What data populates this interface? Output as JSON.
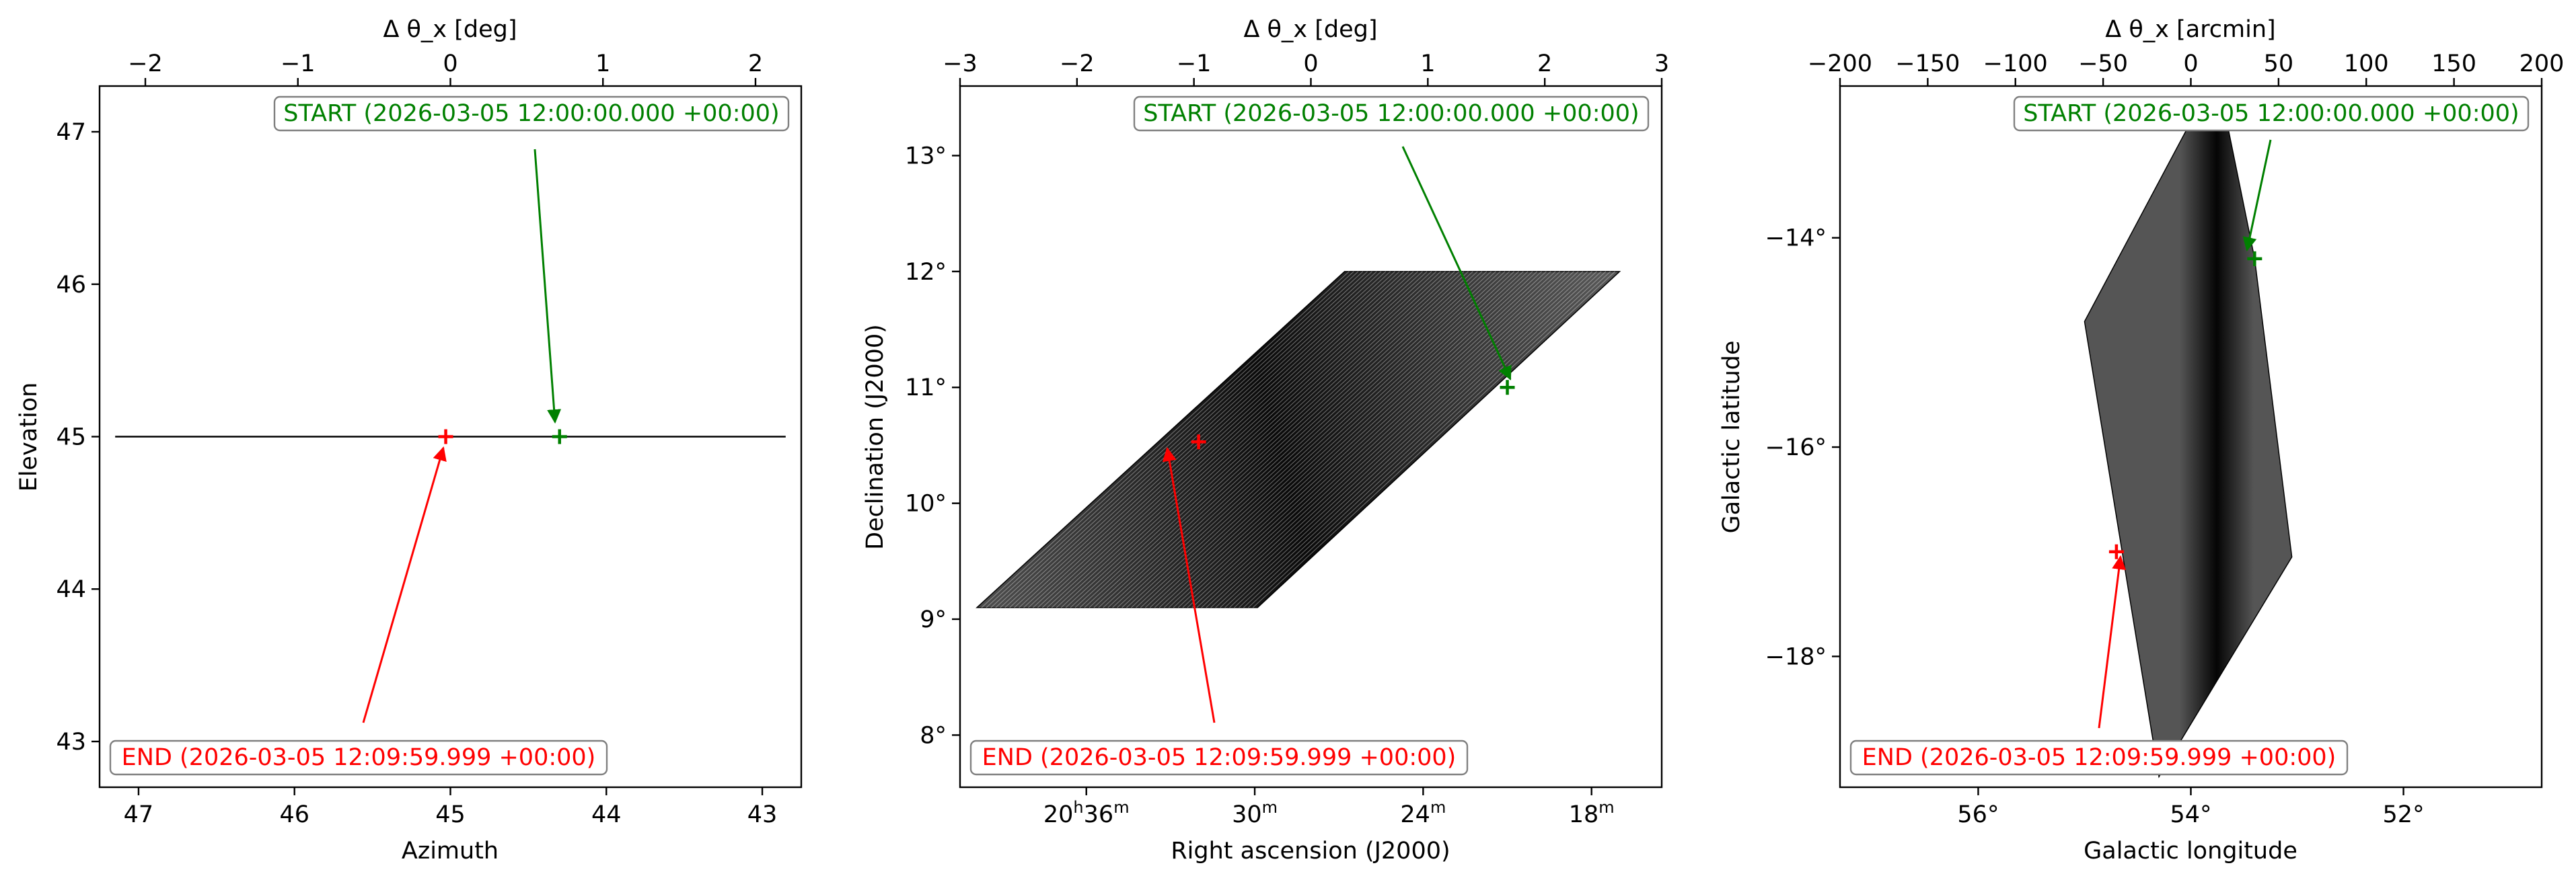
{
  "chart_data": [
    {
      "type": "line",
      "panel": "altaz",
      "xlabel": "Azimuth",
      "ylabel": "Elevation",
      "top_xlabel": "Δ θ_x [deg]",
      "xlim": [
        47.25,
        42.75
      ],
      "ylim": [
        42.7,
        47.3
      ],
      "x_ticks": [
        {
          "v": 47,
          "label": "47"
        },
        {
          "v": 46,
          "label": "46"
        },
        {
          "v": 45,
          "label": "45"
        },
        {
          "v": 44,
          "label": "44"
        },
        {
          "v": 43,
          "label": "43"
        }
      ],
      "y_ticks": [
        {
          "v": 43,
          "label": "43"
        },
        {
          "v": 44,
          "label": "44"
        },
        {
          "v": 45,
          "label": "45"
        },
        {
          "v": 46,
          "label": "46"
        },
        {
          "v": 47,
          "label": "47"
        }
      ],
      "top_xlim": [
        -2.3,
        2.3
      ],
      "top_ticks": [
        {
          "v": -2,
          "label": "−2"
        },
        {
          "v": -1,
          "label": "−1"
        },
        {
          "v": 0,
          "label": "0"
        },
        {
          "v": 1,
          "label": "1"
        },
        {
          "v": 2,
          "label": "2"
        }
      ],
      "scan_line": {
        "x": [
          47.15,
          42.85
        ],
        "y": 45.0
      },
      "start_marker": {
        "x": 44.3,
        "y": 45.0
      },
      "end_marker": {
        "x": 45.03,
        "y": 45.0
      },
      "start_label": "START (2026-03-05 12:00:00.000 +00:00)",
      "end_label": "END (2026-03-05 12:09:59.999 +00:00)",
      "colors": {
        "start": "#008000",
        "end": "#ff0000",
        "scan": "#000000"
      }
    },
    {
      "type": "area",
      "panel": "radec",
      "xlabel": "Right ascension (J2000)",
      "ylabel": "Declination (J2000)",
      "top_xlabel": "Δ θ_x [deg]",
      "xlim_min": [
        40.5,
        15.5
      ],
      "ylim": [
        7.55,
        13.6
      ],
      "x_ticks": [
        {
          "v": 36,
          "h": "20",
          "m": "36"
        },
        {
          "v": 30,
          "m": "30"
        },
        {
          "v": 24,
          "m": "24"
        },
        {
          "v": 18,
          "m": "18"
        }
      ],
      "y_ticks": [
        {
          "v": 8,
          "label": "8°"
        },
        {
          "v": 9,
          "label": "9°"
        },
        {
          "v": 10,
          "label": "10°"
        },
        {
          "v": 11,
          "label": "11°"
        },
        {
          "v": 12,
          "label": "12°"
        },
        {
          "v": 13,
          "label": "13°"
        }
      ],
      "top_xlim": [
        -3,
        3
      ],
      "top_ticks": [
        {
          "v": -3,
          "label": "−3"
        },
        {
          "v": -2,
          "label": "−2"
        },
        {
          "v": -1,
          "label": "−1"
        },
        {
          "v": 0,
          "label": "0"
        },
        {
          "v": 1,
          "label": "1"
        },
        {
          "v": 2,
          "label": "2"
        },
        {
          "v": 3,
          "label": "3"
        }
      ],
      "scan_region": {
        "ra_min": [
          39.9,
          29.9,
          17.0,
          26.8
        ],
        "dec": [
          9.1,
          9.1,
          12.0,
          12.0
        ]
      },
      "start_marker": {
        "ra_min": 21.0,
        "dec": 11.0
      },
      "end_marker": {
        "ra_min": 32.0,
        "dec": 10.53
      },
      "start_label": "START (2026-03-05 12:00:00.000 +00:00)",
      "end_label": "END (2026-03-05 12:09:59.999 +00:00)",
      "colors": {
        "start": "#008000",
        "end": "#ff0000",
        "scan": "#000000"
      }
    },
    {
      "type": "area",
      "panel": "galactic",
      "xlabel": "Galactic longitude",
      "ylabel": "Galactic latitude",
      "top_xlabel": "Δ θ_x [arcmin]",
      "xlim": [
        57.3,
        50.7
      ],
      "ylim": [
        -19.25,
        -12.55
      ],
      "x_ticks": [
        {
          "v": 56,
          "label": "56°"
        },
        {
          "v": 54,
          "label": "54°"
        },
        {
          "v": 52,
          "label": "52°"
        }
      ],
      "y_ticks": [
        {
          "v": -14,
          "label": "−14°"
        },
        {
          "v": -16,
          "label": "−16°"
        },
        {
          "v": -18,
          "label": "−18°"
        }
      ],
      "top_xlim": [
        -200,
        200
      ],
      "top_ticks": [
        {
          "v": -200,
          "label": "−200"
        },
        {
          "v": -150,
          "label": "−150"
        },
        {
          "v": -100,
          "label": "−100"
        },
        {
          "v": -50,
          "label": "−50"
        },
        {
          "v": 0,
          "label": "0"
        },
        {
          "v": 50,
          "label": "50"
        },
        {
          "v": 100,
          "label": "100"
        },
        {
          "v": 150,
          "label": "150"
        },
        {
          "v": 200,
          "label": "200"
        }
      ],
      "scan_region": {
        "lon": [
          53.7,
          53.4,
          53.05,
          54.3,
          55.0,
          53.9
        ],
        "lat": [
          -12.7,
          -14.2,
          -17.05,
          -19.15,
          -14.8,
          -12.7
        ]
      },
      "start_marker": {
        "lon": 53.4,
        "lat": -14.2
      },
      "end_marker": {
        "lon": 54.7,
        "lat": -17.0
      },
      "start_label": "START (2026-03-05 12:00:00.000 +00:00)",
      "end_label": "END (2026-03-05 12:09:59.999 +00:00)",
      "colors": {
        "start": "#008000",
        "end": "#ff0000",
        "scan": "#000000"
      }
    }
  ]
}
